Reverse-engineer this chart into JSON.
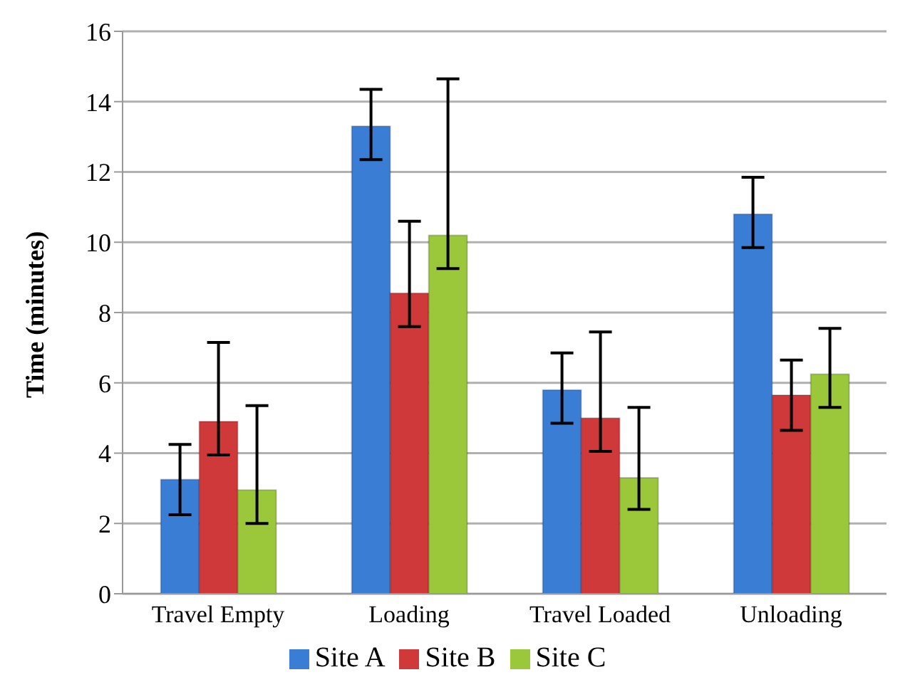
{
  "chart_data": {
    "type": "bar",
    "ylabel": "Time (minutes)",
    "categories": [
      "Travel Empty",
      "Loading",
      "Travel Loaded",
      "Unloading"
    ],
    "series": [
      {
        "name": "Site A",
        "color": "#3a7dd4",
        "values": [
          3.25,
          13.3,
          5.8,
          10.8
        ],
        "errors": [
          [
            2.25,
            4.25
          ],
          [
            12.35,
            14.35
          ],
          [
            4.85,
            6.85
          ],
          [
            9.85,
            11.85
          ]
        ]
      },
      {
        "name": "Site B",
        "color": "#d0393a",
        "values": [
          4.9,
          8.55,
          5.0,
          5.65
        ],
        "errors": [
          [
            3.95,
            7.15
          ],
          [
            7.6,
            10.6
          ],
          [
            4.05,
            7.45
          ],
          [
            4.65,
            6.65
          ]
        ]
      },
      {
        "name": "Site C",
        "color": "#9bc73a",
        "values": [
          2.95,
          10.2,
          3.3,
          6.25
        ],
        "errors": [
          [
            2.0,
            5.35
          ],
          [
            9.25,
            14.65
          ],
          [
            2.4,
            5.3
          ],
          [
            5.3,
            7.55
          ]
        ]
      }
    ],
    "ylim": [
      0,
      16
    ],
    "yticks": [
      0,
      2,
      4,
      6,
      8,
      10,
      12,
      14,
      16
    ],
    "grid": "y",
    "legend": "bottom"
  }
}
